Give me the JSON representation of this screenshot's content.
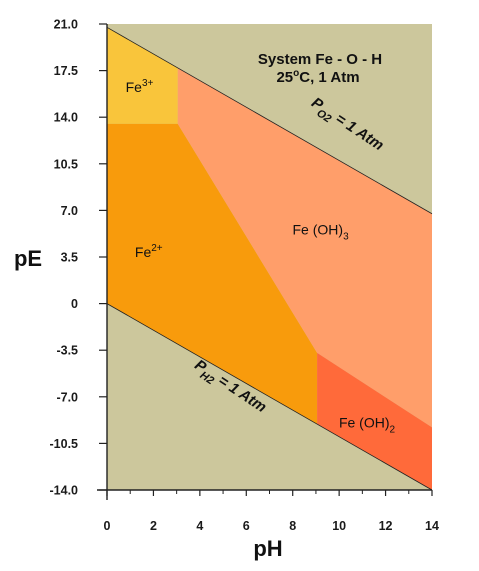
{
  "chart_data": {
    "type": "area",
    "title": "System Fe - O - H",
    "subtitle": "25°C, 1 Atm",
    "xlabel": "pH",
    "ylabel": "pE",
    "xlim": [
      0,
      14
    ],
    "ylim": [
      -14.0,
      21.0
    ],
    "x_ticks": [
      "0",
      "2",
      "4",
      "6",
      "8",
      "10",
      "12",
      "14"
    ],
    "y_ticks": [
      "21.0",
      "17.5",
      "14.0",
      "10.5",
      "7.0",
      "3.5",
      "0",
      "-3.5",
      "-7.0",
      "-10.5",
      "-14.0"
    ],
    "grid": false,
    "boundary_lines": [
      {
        "label_main": "P",
        "label_sub": "O2",
        "label_tail": " = 1 Atm",
        "points": [
          [
            0,
            20.75
          ],
          [
            14,
            6.75
          ]
        ]
      },
      {
        "label_main": "P",
        "label_sub": "H2",
        "label_tail": " = 1 Atm",
        "points": [
          [
            0,
            0
          ],
          [
            14,
            -14.0
          ]
        ]
      }
    ],
    "regions": [
      {
        "label_main": "Fe",
        "label_sup": "3+",
        "label_sub": "",
        "color": "#F9C53B",
        "polygon": [
          [
            0,
            20.75
          ],
          [
            3.05,
            17.7
          ],
          [
            3.05,
            13.5
          ],
          [
            0,
            13.5
          ]
        ],
        "label_at": [
          1.4,
          15.9
        ]
      },
      {
        "label_main": "Fe",
        "label_sup": "2+",
        "label_sub": "",
        "color": "#F89B0C",
        "polygon": [
          [
            0,
            13.5
          ],
          [
            3.05,
            13.5
          ],
          [
            9.05,
            -3.7
          ],
          [
            9.05,
            -9.05
          ],
          [
            0,
            0
          ]
        ],
        "label_at": [
          1.8,
          3.5
        ]
      },
      {
        "label_main": "Fe (OH)",
        "label_sup": "",
        "label_sub": "3",
        "color": "#FF9E6A",
        "polygon": [
          [
            3.05,
            17.7
          ],
          [
            14,
            6.75
          ],
          [
            14,
            -9.3
          ],
          [
            9.05,
            -3.7
          ],
          [
            3.05,
            13.5
          ]
        ],
        "label_at": [
          9.2,
          5.2
        ]
      },
      {
        "label_main": "Fe (OH)",
        "label_sup": "",
        "label_sub": "2",
        "color": "#FF6A3A",
        "polygon": [
          [
            9.05,
            -3.7
          ],
          [
            14,
            -9.3
          ],
          [
            14,
            -14.0
          ],
          [
            9.05,
            -9.05
          ]
        ],
        "label_at": [
          11.2,
          -9.3
        ]
      }
    ],
    "background_color": "#CCC79C"
  }
}
